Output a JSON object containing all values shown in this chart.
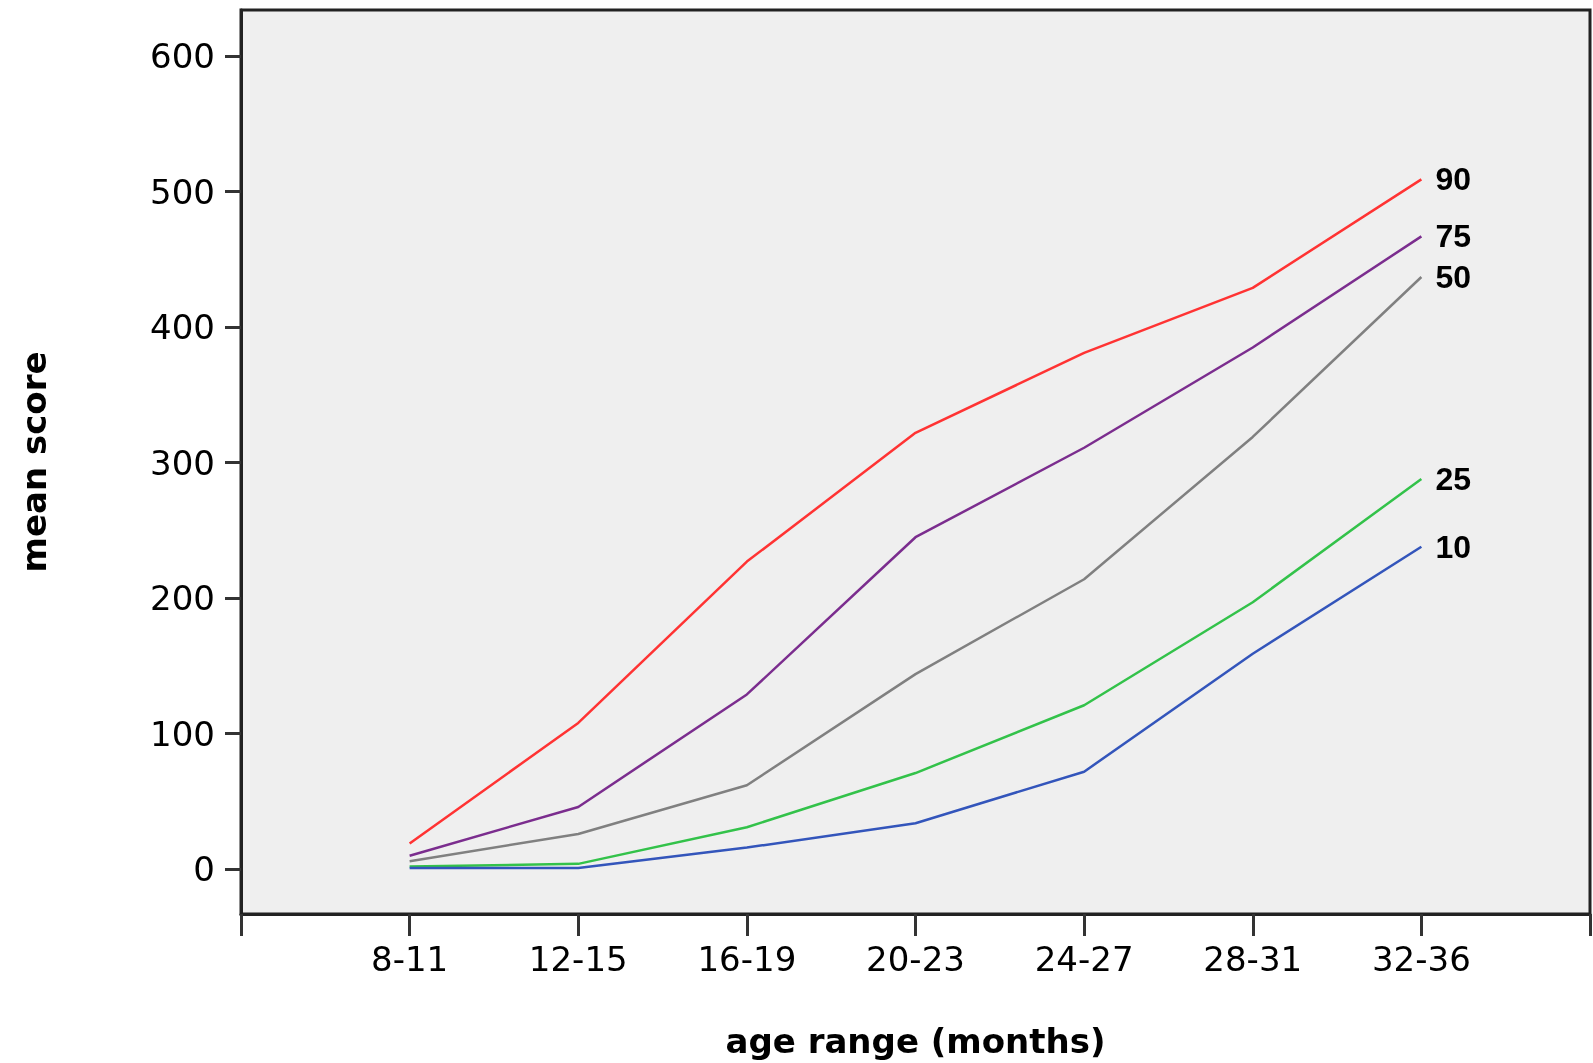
{
  "chart_data": {
    "type": "line",
    "xlabel": "age range (months)",
    "ylabel": "mean score",
    "categories": [
      "8-11",
      "12-15",
      "16-19",
      "20-23",
      "24-27",
      "28-31",
      "32-36"
    ],
    "series": [
      {
        "name": "90",
        "color": "#ff3333",
        "values": [
          19,
          108,
          227,
          322,
          381,
          429,
          509
        ]
      },
      {
        "name": "75",
        "color": "#7b2d8e",
        "values": [
          10,
          46,
          129,
          245,
          311,
          385,
          467
        ]
      },
      {
        "name": "50",
        "color": "#808080",
        "values": [
          6,
          26,
          62,
          144,
          214,
          319,
          437
        ]
      },
      {
        "name": "25",
        "color": "#33c24a",
        "values": [
          2,
          4,
          31,
          71,
          121,
          197,
          288
        ]
      },
      {
        "name": "10",
        "color": "#3355bb",
        "values": [
          1,
          1,
          16,
          34,
          72,
          159,
          238
        ]
      }
    ],
    "ylim": [
      -33,
      634
    ],
    "yticks": [
      0,
      100,
      200,
      300,
      400,
      500,
      600
    ],
    "grid": false,
    "legend": false,
    "marker": "none",
    "line_style": "solid"
  }
}
